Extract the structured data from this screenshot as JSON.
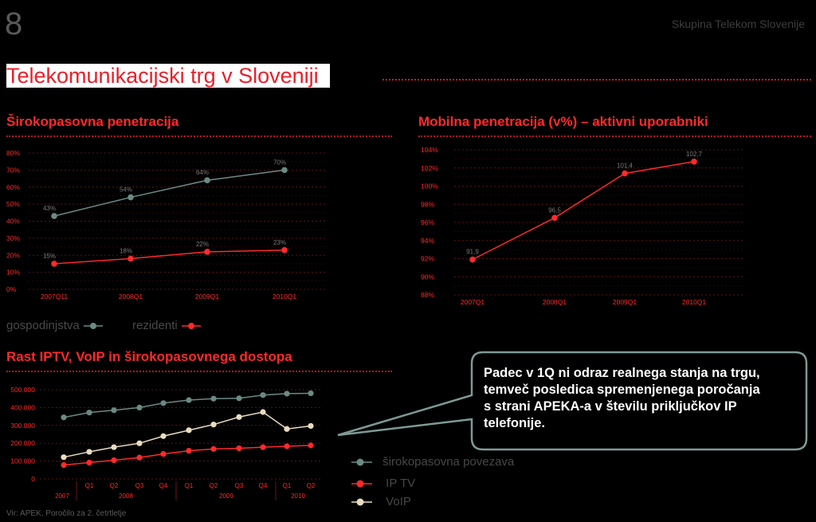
{
  "page_number": "8",
  "brand": "Skupina Telekom Slovenije",
  "main_title": "Telekomunikacijski trg v Sloveniji",
  "footnote": "Vir: APEK, Poročilo za 2. četrtletje",
  "callout": "Padec v 1Q ni odraz realnega stanja na trgu, temveč posledica spremenjenega poročanja s strani APEKA-a v številu priključkov IP telefonije.",
  "colors": {
    "red": "#ff2a2a",
    "grey": "#6b8a85",
    "cream": "#e9dcc0",
    "dark_red": "#c0161d"
  },
  "chart_data": [
    {
      "type": "line",
      "title": "Širokopasovna penetracija",
      "categories": [
        "2007Q11",
        "2008Q1",
        "2009Q1",
        "2010Q1"
      ],
      "y_ticks": [
        "0%",
        "10%",
        "20%",
        "30%",
        "40%",
        "50%",
        "60%",
        "70%",
        "80%"
      ],
      "ylim": [
        0,
        80
      ],
      "series": [
        {
          "name": "gospodinjstva",
          "values": [
            43,
            54,
            64,
            70
          ],
          "labels": [
            "43%",
            "54%",
            "64%",
            "70%"
          ],
          "color": "#6b8a85"
        },
        {
          "name": "rezidenti",
          "values": [
            15,
            18,
            22,
            23
          ],
          "labels": [
            "15%",
            "18%",
            "22%",
            "23%"
          ],
          "color": "#ff2a2a"
        }
      ]
    },
    {
      "type": "line",
      "title": "Mobilna penetracija  (v%) – aktivni uporabniki",
      "categories": [
        "2007Q1",
        "2008Q1",
        "2009Q1",
        "2010Q1"
      ],
      "y_ticks": [
        "88%",
        "90%",
        "92%",
        "94%",
        "96%",
        "98%",
        "100%",
        "102%",
        "104%"
      ],
      "ylim": [
        88,
        104
      ],
      "series": [
        {
          "name": "aktivni uporabniki",
          "values": [
            91.9,
            96.5,
            101.4,
            102.7
          ],
          "labels": [
            "91,9",
            "96,5",
            "101,4",
            "102,7"
          ],
          "color": "#ff2a2a"
        }
      ]
    },
    {
      "type": "line",
      "title": "Rast IPTV, VoIP in širokopasovnega dostopa",
      "quarters": [
        "",
        "Q1",
        "Q2",
        "Q3",
        "Q4",
        "Q1",
        "Q2",
        "Q3",
        "Q4",
        "Q1",
        "Q2"
      ],
      "years": [
        "2007",
        "2008",
        "2009",
        "2010"
      ],
      "y_ticks": [
        "0",
        "100.000",
        "200.000",
        "300.000",
        "400.000",
        "500.000"
      ],
      "ylim": [
        0,
        500000
      ],
      "series": [
        {
          "name": "širokopasovna povezava",
          "color": "#6b8a85",
          "values": [
            345000,
            372000,
            385000,
            400000,
            425000,
            442000,
            450000,
            452000,
            470000,
            478000,
            480000
          ]
        },
        {
          "name": "IP TV",
          "color": "#ff2a2a",
          "values": [
            78000,
            92000,
            105000,
            120000,
            140000,
            158000,
            168000,
            172000,
            178000,
            183000,
            188000
          ]
        },
        {
          "name": "VoIP",
          "color": "#e9dcc0",
          "values": [
            122000,
            152000,
            178000,
            200000,
            240000,
            273000,
            305000,
            347000,
            375000,
            280000,
            297000
          ]
        }
      ]
    }
  ]
}
